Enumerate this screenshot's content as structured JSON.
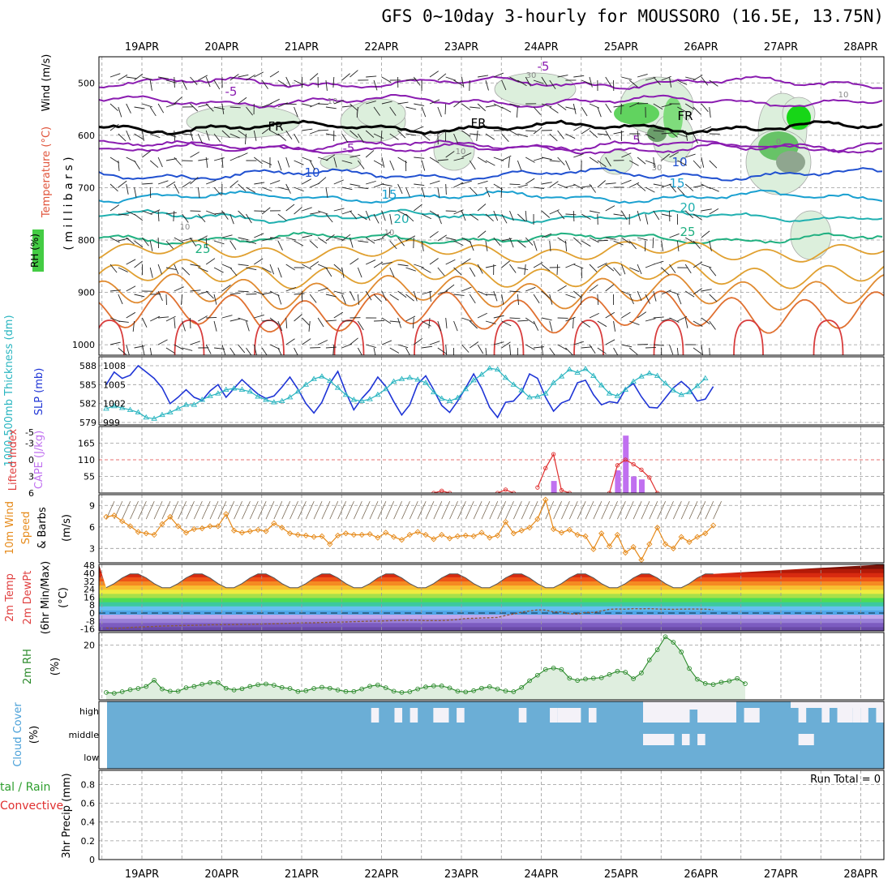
{
  "title": "GFS 0~10day 3-hourly for MOUSSORO (16.5E, 13.75N)",
  "chart_data": [
    {
      "panel": "upper-air",
      "type": "contour",
      "ylabel_parts": [
        {
          "text": "RH (%)",
          "color": "#2e9e2e"
        },
        {
          "text": "Temperature (°C)",
          "color": "#e0533a"
        },
        {
          "text": "Wind (m/s)",
          "color": "#000000"
        }
      ],
      "ylabel2": "( m i l l i b a r s )",
      "x_ticks": [
        "19APR",
        "20APR",
        "21APR",
        "22APR",
        "23APR",
        "24APR",
        "25APR",
        "26APR",
        "27APR",
        "28APR"
      ],
      "y_ticks": [
        500,
        600,
        700,
        800,
        900,
        1000
      ],
      "ylim": [
        450,
        1020
      ],
      "isotherms": [
        {
          "label": "-5",
          "level": 500,
          "color": "#8a1cb0"
        },
        {
          "label": "-5",
          "level": 535,
          "color": "#8a1cb0"
        },
        {
          "label": "FR",
          "level": 585,
          "color": "#000000"
        },
        {
          "label": "-5",
          "level": 625,
          "color": "#8a1cb0"
        },
        {
          "label": "5",
          "level": 620,
          "color": "#8a1cb0"
        },
        {
          "label": "10",
          "level": 675,
          "color": "#2050d0"
        },
        {
          "label": "15",
          "level": 718,
          "color": "#1aa0d0"
        },
        {
          "label": "20",
          "level": 755,
          "color": "#20b0b0"
        },
        {
          "label": "25",
          "level": 797,
          "color": "#20b080"
        }
      ],
      "rh_labels": [
        "10",
        "10",
        "30",
        "30",
        "0",
        "10",
        "10",
        "10"
      ]
    },
    {
      "panel": "thickness-slp",
      "type": "line",
      "ylabel_left": "1000-500mb Thickness (dm)",
      "ylabel_right": "SLP (mb)",
      "left_ticks": [
        579,
        582,
        585,
        588
      ],
      "right_ticks": [
        999,
        1002,
        1005,
        1008
      ],
      "series": [
        {
          "name": "SLP (mb)",
          "color": "#1f35d6",
          "values": [
            1005,
            1007,
            1006,
            1006.5,
            1008,
            1007,
            1006,
            1004.5,
            1002,
            1003,
            1004.2,
            1003,
            1002.5,
            1004,
            1005,
            1003,
            1004.4,
            1005.8,
            1004.6,
            1003.5,
            1002.8,
            1003.2,
            1004.6,
            1006.2,
            1004.3,
            1002,
            1000.5,
            1002.2,
            1005.2,
            1007.1,
            1003.8,
            1001,
            1002.8,
            1004.2,
            1006.2,
            1004.7,
            1002.3,
            1000.2,
            1001.8,
            1005.1,
            1006.4,
            1004.2,
            1001.7,
            1000.6,
            1002.4,
            1004.5,
            1006.7,
            1004.4,
            1001.4,
            999.8,
            1002.2,
            1002.4,
            1003.8,
            1006.7,
            1006,
            1003,
            1000.8,
            1002.1,
            1002.6,
            1005.3,
            1005.7,
            1003.4,
            1001.8,
            1002.3,
            1002.1,
            1004.3,
            1005.2,
            1003.1,
            1001.4,
            1001.3,
            1002.9,
            1004.5,
            1005.5,
            1004.4,
            1002.4,
            1002.7,
            1004.7
          ]
        },
        {
          "name": "1000-500mb Thickness (dm)",
          "color": "#29b5c0",
          "values": [
            581.2,
            581.6,
            581.3,
            581,
            580.6,
            579.8,
            579.6,
            580.2,
            580.6,
            581.2,
            581.8,
            581.8,
            582.6,
            583.2,
            583.6,
            584.2,
            584.4,
            584.2,
            583.9,
            583.1,
            582.6,
            582.2,
            582.4,
            583,
            583.9,
            585,
            585.9,
            586.3,
            585.6,
            584.5,
            583.4,
            582.6,
            582.4,
            582.7,
            583.4,
            584.3,
            585.5,
            585.9,
            586.1,
            585.8,
            585.3,
            583.8,
            582.8,
            582.4,
            582.9,
            584.3,
            585.7,
            586.6,
            587.6,
            587.4,
            586.1,
            585,
            584.1,
            583,
            583.1,
            583.6,
            585.3,
            586.3,
            587.4,
            586.9,
            587.5,
            586.4,
            584.9,
            583.6,
            583.2,
            584.2,
            585.5,
            586.3,
            586.8,
            586.4,
            585.2,
            584.1,
            583.4,
            583.8,
            584.8,
            586
          ]
        }
      ]
    },
    {
      "panel": "cape-li",
      "type": "bar",
      "ylabel_left": "Lifted Index",
      "ylabel_right": "CAPE (J/kg)",
      "li_ticks": [
        -5,
        -3,
        0,
        3,
        6
      ],
      "cape_ticks": [
        55,
        110,
        165
      ],
      "cape_bars": [
        {
          "x": 56,
          "value": 40
        },
        {
          "x": 64,
          "value": 75
        },
        {
          "x": 65,
          "value": 190
        },
        {
          "x": 66,
          "value": 55
        },
        {
          "x": 67,
          "value": 45
        }
      ],
      "li_curve": [
        {
          "x": 41,
          "value": 6
        },
        {
          "x": 42,
          "value": 5.6
        },
        {
          "x": 43,
          "value": 6
        },
        {
          "x": 49,
          "value": 6
        },
        {
          "x": 50,
          "value": 5.4
        },
        {
          "x": 51,
          "value": 6
        },
        {
          "x": 54,
          "value": 5
        },
        {
          "x": 55,
          "value": 1.5
        },
        {
          "x": 56,
          "value": -1
        },
        {
          "x": 57,
          "value": 5.5
        },
        {
          "x": 58,
          "value": 6
        },
        {
          "x": 63,
          "value": 6
        },
        {
          "x": 64,
          "value": 1
        },
        {
          "x": 65,
          "value": 0
        },
        {
          "x": 66,
          "value": 0.8
        },
        {
          "x": 67,
          "value": 1.8
        },
        {
          "x": 68,
          "value": 3.2
        },
        {
          "x": 69,
          "value": 6
        }
      ]
    },
    {
      "panel": "wind10m",
      "type": "line",
      "ylabel_parts": [
        {
          "text": "10m Wind",
          "color": "#e68a1a"
        },
        {
          "text": "Speed",
          "color": "#e68a1a"
        },
        {
          "text": "& Barbs",
          "color": "#000000"
        }
      ],
      "ylabel_unit": "(m/s)",
      "y_ticks": [
        3,
        6,
        9
      ],
      "ylim": [
        1,
        10.5
      ],
      "series": [
        {
          "name": "10m Wind Speed",
          "color": "#e68a1a",
          "values": [
            7.4,
            7.6,
            6.8,
            6.1,
            5.3,
            5.1,
            4.9,
            6.4,
            7.4,
            6.1,
            5.2,
            5.7,
            5.8,
            6.1,
            6.1,
            7.8,
            5.5,
            5.2,
            5.4,
            5.6,
            5.4,
            6.5,
            5.9,
            5.1,
            4.9,
            4.8,
            4.6,
            4.7,
            3.6,
            4.8,
            5.1,
            4.9,
            4.9,
            5,
            4.5,
            5.2,
            4.6,
            4.2,
            4.9,
            5.3,
            4.9,
            4.3,
            4.9,
            4.4,
            4.7,
            4.8,
            4.7,
            5.2,
            4.5,
            4.8,
            6.7,
            5.1,
            5.5,
            5.9,
            7.1,
            9.8,
            5.7,
            5.2,
            5.6,
            4.9,
            4.7,
            2.9,
            5.1,
            3.3,
            4.9,
            2.4,
            3.2,
            1.4,
            3.6,
            5.9,
            3.6,
            3,
            4.6,
            3.9,
            4.6,
            5.1,
            6.2
          ]
        }
      ]
    },
    {
      "panel": "temp2m",
      "type": "area",
      "ylabel_parts": [
        "2m Temp",
        "2m DewPt",
        "(6hr Min/Max)",
        "(°C)"
      ],
      "y_ticks": [
        -16,
        -8,
        0,
        8,
        16,
        24,
        32,
        40,
        48
      ],
      "ylim": [
        -18,
        49
      ],
      "temp_min": 25,
      "temp_max": 40,
      "dewpoint": [
        -15,
        -15.6,
        -15.1,
        -14.6,
        -14.2,
        -13.9,
        -13.6,
        -13.1,
        -12.9,
        -12.7,
        -12.5,
        -12.4,
        -12.1,
        -11.9,
        -11.8,
        -11.7,
        -11.6,
        -11.5,
        -11.4,
        -11.2,
        -11,
        -10.8,
        -10.6,
        -10.4,
        -10,
        -9.9,
        -9.8,
        -9.6,
        -9.4,
        -9.2,
        -9,
        -8.7,
        -8.4,
        -8.2,
        -8.1,
        -7.9,
        -7.6,
        -7.4,
        -7.2,
        -7.3,
        -7.7,
        -7.6,
        -7.6,
        -7.1,
        -6.6,
        -5.5,
        -5.3,
        -4.9,
        -4.8,
        -4.4,
        -2.4,
        -1,
        0.8,
        2.1,
        3.2,
        3,
        1,
        1.2,
        -0.5,
        -1.2,
        0.7,
        0.5,
        2.2,
        3.7,
        4.1,
        3.9,
        4.4,
        4.2,
        4.4,
        4.1,
        3.8,
        3.7,
        3.9,
        4,
        4,
        3.9,
        3.3
      ]
    },
    {
      "panel": "rh2m",
      "type": "area",
      "ylabel": "2m RH",
      "ylabel_unit": "(%)",
      "y_ticks": [
        20
      ],
      "ylim": [
        0,
        25
      ],
      "series": [
        {
          "name": "2m RH",
          "color": "#2a8a2a",
          "values": [
            1,
            0.7,
            1.3,
            2.1,
            2.6,
            3.4,
            5.9,
            2.4,
            1.5,
            1.5,
            2.9,
            3.4,
            4.3,
            4.9,
            4.9,
            2.7,
            2,
            2.5,
            3.4,
            4.1,
            4.4,
            3.9,
            3,
            2.6,
            1.4,
            1.7,
            2.6,
            3.1,
            2.7,
            2,
            1.4,
            1.4,
            2.4,
            3.5,
            4,
            2.9,
            1.5,
            1,
            1.3,
            2.4,
            3.2,
            3.6,
            3.6,
            2.8,
            1.5,
            1.2,
            1.7,
            2.7,
            3.3,
            2.4,
            1.6,
            1.3,
            3,
            5.7,
            7.9,
            10.2,
            10.8,
            10.2,
            6.7,
            5.8,
            6.4,
            6.7,
            6.9,
            8.2,
            9.5,
            9.1,
            6.5,
            8.8,
            14,
            18.1,
            23.3,
            21.1,
            17.2,
            10.6,
            6.3,
            4.6,
            4.2,
            5.1,
            5.6,
            6.6,
            4.5
          ]
        }
      ]
    },
    {
      "panel": "cloud",
      "type": "heatmap",
      "ylabel": "Cloud Cover",
      "ylabel_unit": "(%)",
      "levels": [
        "high",
        "middle",
        "low"
      ],
      "high_clear": [
        [
          34,
          35
        ],
        [
          37,
          38
        ],
        [
          39,
          40
        ],
        [
          42,
          44
        ],
        [
          45,
          46
        ],
        [
          53,
          54
        ],
        [
          57,
          58
        ],
        [
          58,
          61
        ],
        [
          62,
          63
        ],
        [
          69,
          75
        ],
        [
          76,
          81
        ],
        [
          82,
          84
        ],
        [
          89,
          90
        ],
        [
          92,
          93
        ],
        [
          94,
          96
        ],
        [
          96,
          97
        ],
        [
          97,
          98
        ],
        [
          99,
          100
        ]
      ],
      "middle_clear": [
        [
          69,
          73
        ],
        [
          74,
          75
        ],
        [
          76,
          77
        ],
        [
          89,
          91
        ]
      ]
    },
    {
      "panel": "precip",
      "type": "bar",
      "ylabel_parts": [
        {
          "text": "tal / Rain",
          "color": "#2e9e2e"
        },
        {
          "text": "Convective",
          "color": "#e03030"
        },
        {
          "text": "3hr Precip (mm)",
          "color": "#000000"
        }
      ],
      "y_ticks": [
        0,
        0.2,
        0.4,
        0.6,
        0.8
      ],
      "ylim": [
        0,
        0.95
      ],
      "run_total_label": "Run Total = 0",
      "values": []
    }
  ]
}
